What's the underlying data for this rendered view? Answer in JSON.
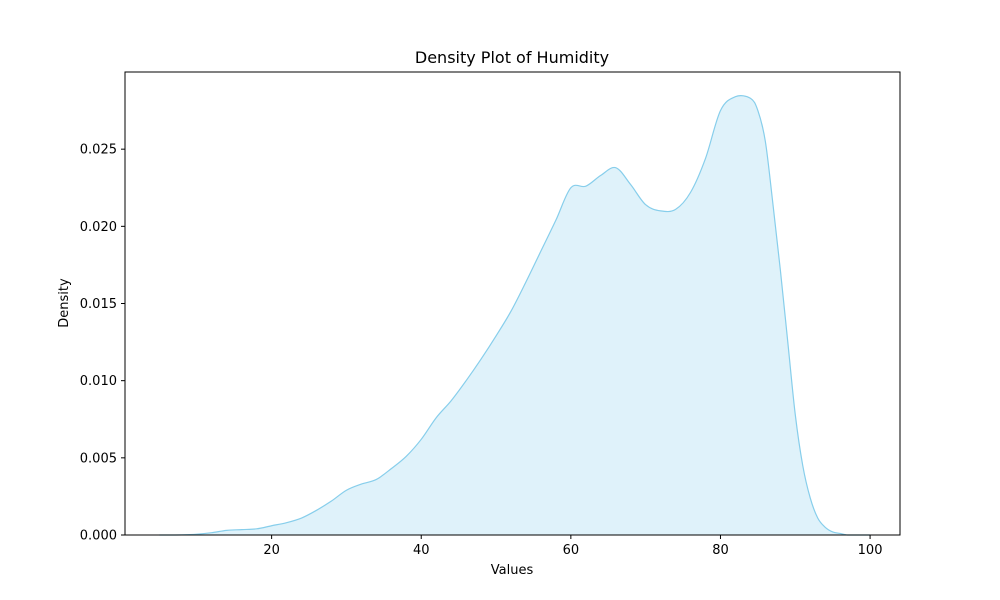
{
  "chart_data": {
    "type": "area",
    "title": "Density Plot of Humidity",
    "xlabel": "Values",
    "ylabel": "Density",
    "xlim": [
      0.4,
      104.0
    ],
    "ylim": [
      0,
      0.03
    ],
    "x_ticks": [
      20,
      40,
      60,
      80,
      100
    ],
    "y_ticks": [
      0.0,
      0.005,
      0.01,
      0.015,
      0.02,
      0.025
    ],
    "y_tick_labels": [
      "0.000",
      "0.005",
      "0.010",
      "0.015",
      "0.020",
      "0.025"
    ],
    "grid": false,
    "legend": "none",
    "series": [
      {
        "color": "#87ceeb",
        "fill_color": "#87ceeb",
        "fill_opacity": 0.27,
        "x": [
          5,
          8,
          10,
          12,
          14,
          16,
          18,
          20,
          22,
          24,
          26,
          28,
          30,
          32,
          34,
          36,
          38,
          40,
          42,
          44,
          46,
          48,
          50,
          52,
          54,
          56,
          58,
          60,
          62,
          64,
          66,
          68,
          70,
          72,
          74,
          76,
          78,
          80,
          82,
          84,
          85,
          86,
          87,
          88,
          89,
          90,
          91,
          92,
          93,
          94,
          95,
          96,
          97,
          98,
          100
        ],
        "y": [
          0.0,
          1e-05,
          5e-05,
          0.00015,
          0.0003,
          0.00035,
          0.0004,
          0.0006,
          0.0008,
          0.0011,
          0.0016,
          0.0022,
          0.0029,
          0.0033,
          0.0036,
          0.0043,
          0.0051,
          0.0062,
          0.0076,
          0.0087,
          0.01,
          0.0114,
          0.0129,
          0.0145,
          0.0164,
          0.0184,
          0.0204,
          0.0225,
          0.0226,
          0.0233,
          0.0238,
          0.0227,
          0.0214,
          0.021,
          0.0211,
          0.0222,
          0.0244,
          0.0275,
          0.0284,
          0.0283,
          0.0275,
          0.0255,
          0.0215,
          0.0172,
          0.0125,
          0.0078,
          0.0045,
          0.0024,
          0.0011,
          0.0005,
          0.0002,
          0.0001,
          0.0,
          0.0,
          0.0
        ]
      }
    ]
  }
}
